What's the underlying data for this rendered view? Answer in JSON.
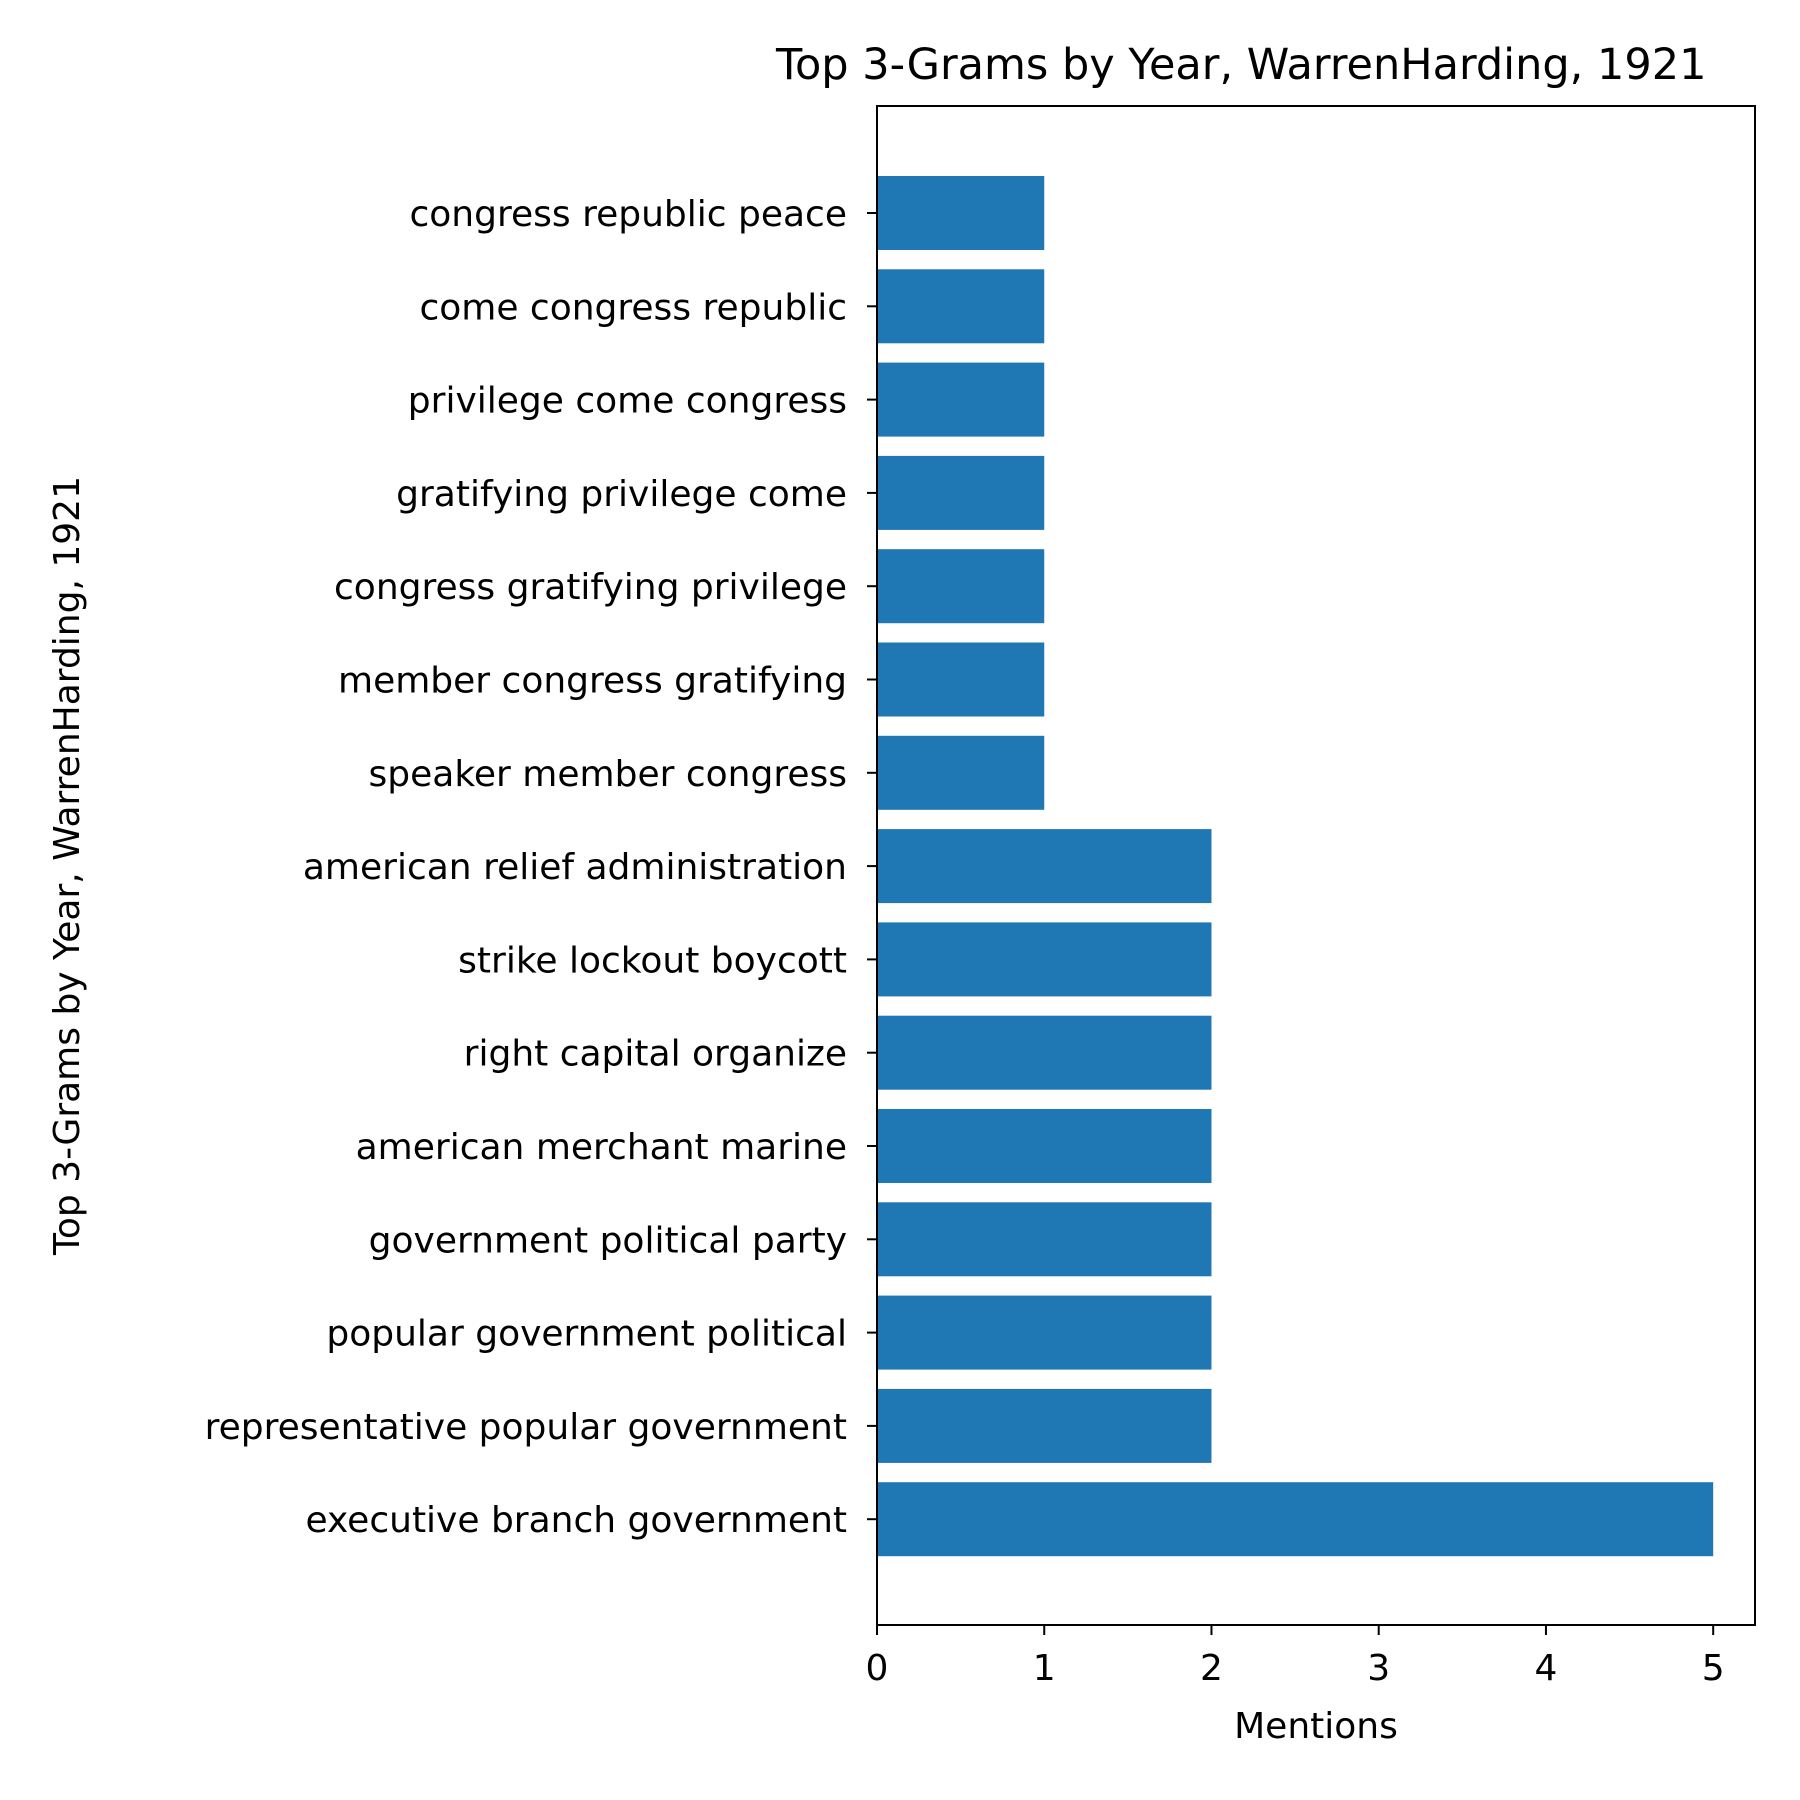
{
  "chart_data": {
    "type": "bar",
    "orientation": "horizontal",
    "title": "Top 3-Grams by Year, WarrenHarding, 1921",
    "xlabel": "Mentions",
    "ylabel": "Top 3-Grams by Year, WarrenHarding, 1921",
    "categories": [
      "executive branch government",
      "representative popular government",
      "popular government political",
      "government political party",
      "american merchant marine",
      "right capital organize",
      "strike lockout boycott",
      "american relief administration",
      "speaker member congress",
      "member congress gratifying",
      "congress gratifying privilege",
      "gratifying privilege come",
      "privilege come congress",
      "come congress republic",
      "congress republic peace"
    ],
    "values": [
      5,
      2,
      2,
      2,
      2,
      2,
      2,
      2,
      1,
      1,
      1,
      1,
      1,
      1,
      1
    ],
    "xticks": [
      "0",
      "1",
      "2",
      "3",
      "4",
      "5"
    ],
    "xlim": [
      0,
      5.25
    ],
    "bar_color": "#1f77b4",
    "grid": false,
    "legend": "none"
  }
}
